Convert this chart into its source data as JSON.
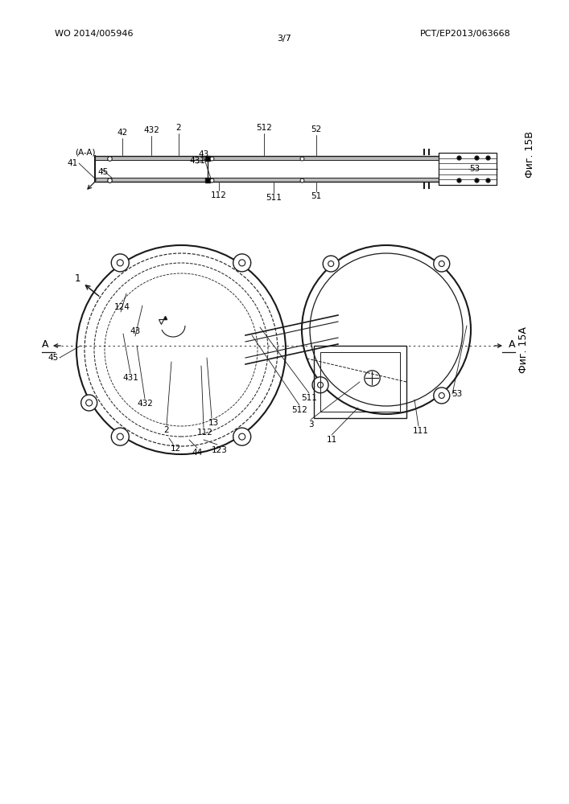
{
  "header_left": "WO 2014/005946",
  "header_right": "PCT/EP2013/063668",
  "header_center": "3/7",
  "fig_top_label": "Фиг. 15B",
  "fig_bottom_label": "Фиг. 15A",
  "bg_color": "#ffffff",
  "line_color": "#1a1a1a"
}
